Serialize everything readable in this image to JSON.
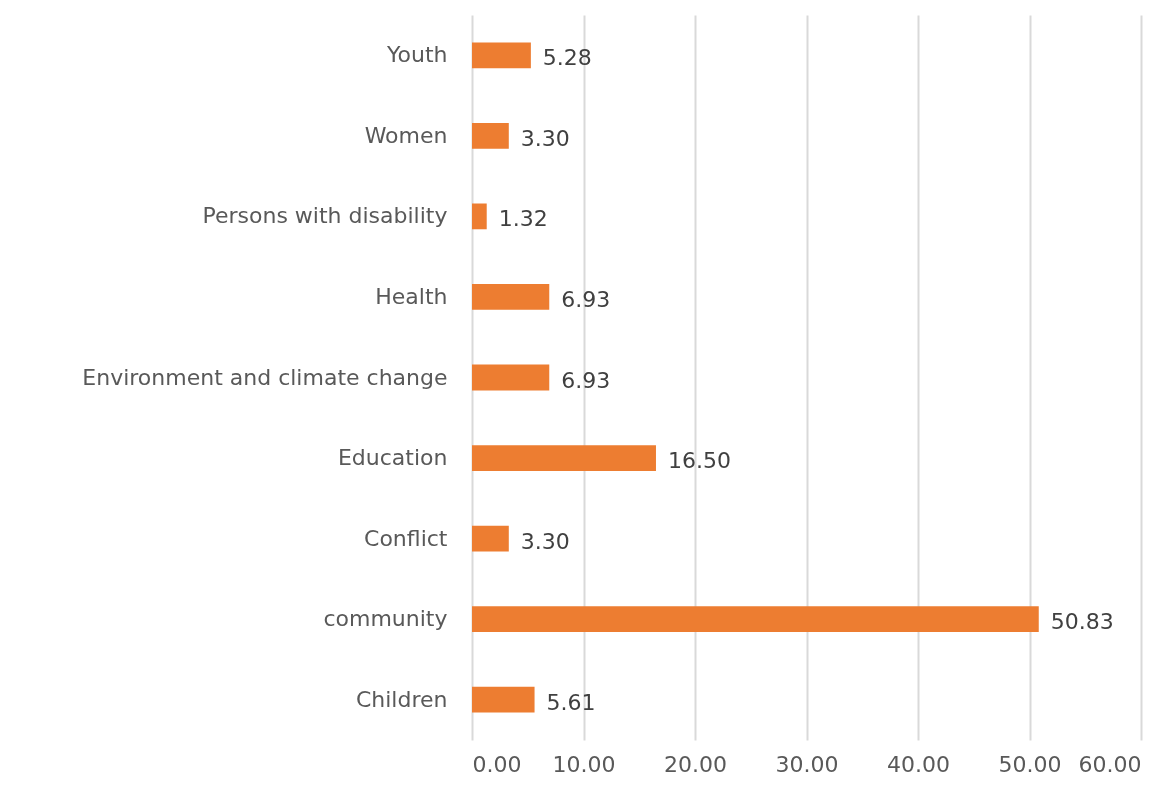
{
  "chart_data": {
    "type": "bar",
    "orientation": "horizontal",
    "categories": [
      "Youth",
      "Women",
      "Persons with disability",
      "Health",
      "Environment and climate change",
      "Education",
      "Conflict",
      "community",
      "Children"
    ],
    "values": [
      5.28,
      3.3,
      1.32,
      6.93,
      6.93,
      16.5,
      3.3,
      50.83,
      5.61
    ],
    "value_labels": [
      "5.28",
      "3.30",
      "1.32",
      "6.93",
      "6.93",
      "16.50",
      "3.30",
      "50.83",
      "5.61"
    ],
    "color": "#ed7d31",
    "xlim": [
      0,
      60
    ],
    "xticks": [
      {
        "value": 0,
        "label": "0.00"
      },
      {
        "value": 10,
        "label": "10.00"
      },
      {
        "value": 20,
        "label": "20.00"
      },
      {
        "value": 30,
        "label": "30.00"
      },
      {
        "value": 40,
        "label": "40.00"
      },
      {
        "value": 50,
        "label": "50.00"
      },
      {
        "value": 60,
        "label": "60.00"
      }
    ],
    "grid": "x"
  }
}
